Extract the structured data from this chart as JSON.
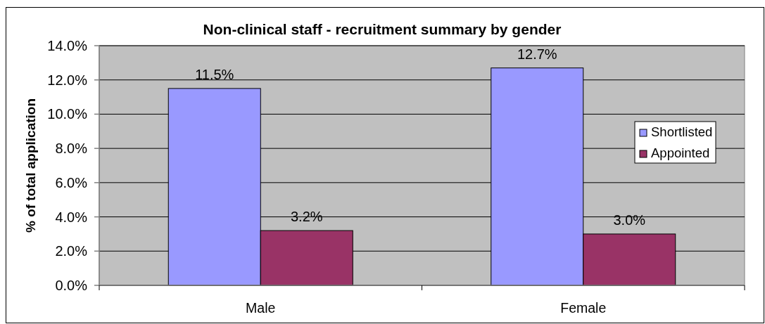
{
  "chart_data": {
    "type": "bar",
    "title": "Non-clinical staff - recruitment summary by gender",
    "ylabel": "% of total application",
    "categories": [
      "Male",
      "Female"
    ],
    "series": [
      {
        "name": "Shortlisted",
        "color": "#9999ff",
        "values": [
          11.5,
          12.7
        ],
        "value_labels": [
          "11.5%",
          "12.7%"
        ]
      },
      {
        "name": "Appointed",
        "color": "#993366",
        "values": [
          3.2,
          3.0
        ],
        "value_labels": [
          "3.2%",
          "3.0%"
        ]
      }
    ],
    "ylim": [
      0,
      14
    ],
    "yticks": [
      {
        "value": 0,
        "label": "0.0%"
      },
      {
        "value": 2,
        "label": "2.0%"
      },
      {
        "value": 4,
        "label": "4.0%"
      },
      {
        "value": 6,
        "label": "6.0%"
      },
      {
        "value": 8,
        "label": "8.0%"
      },
      {
        "value": 10,
        "label": "10.0%"
      },
      {
        "value": 12,
        "label": "12.0%"
      },
      {
        "value": 14,
        "label": "14.0%"
      }
    ],
    "grid": "y",
    "legend": "right"
  }
}
